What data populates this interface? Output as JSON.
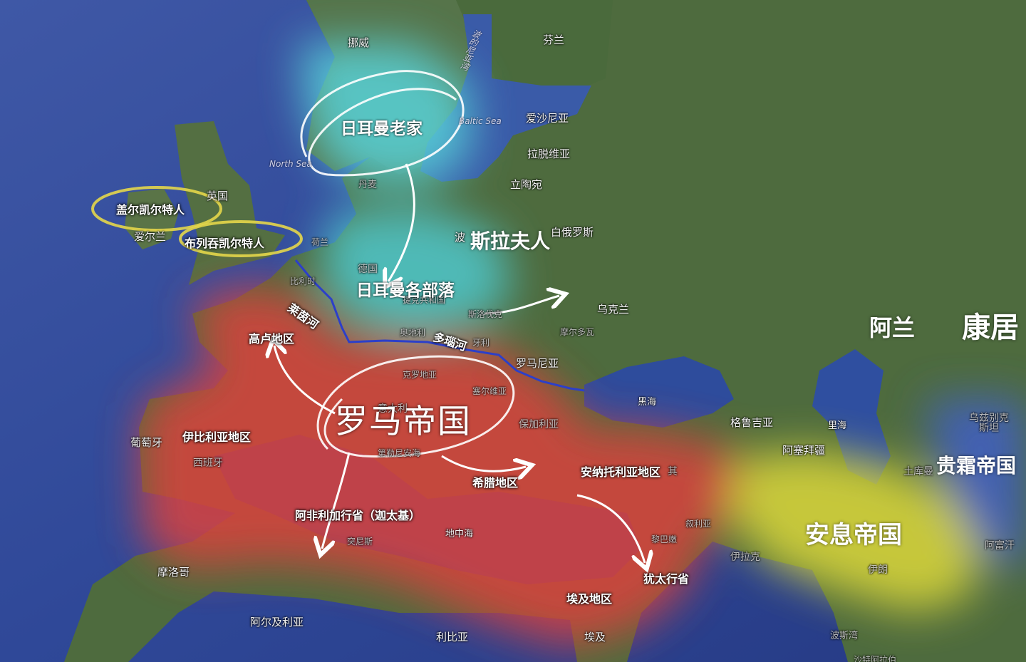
{
  "map": {
    "colors": {
      "roman_empire": "#d9433c",
      "parthia": "#dcd83a",
      "kushan": "#3f5fc8",
      "germanic_origin": "#59d2d8",
      "germanic_tribes": "#4fc8cc",
      "celtic_circle": "#e4d64a",
      "river_border": "#2c3fc9",
      "arrows": "#ffffff"
    },
    "empires": {
      "roman": "罗马帝国",
      "parthian": "安息帝国",
      "kushan": "贵霜帝国",
      "kangju": "康居",
      "alans": "阿兰"
    },
    "peoples": {
      "german_homeland": "日耳曼老家",
      "german_tribes": "日耳曼各部落",
      "slavs": "斯拉夫人",
      "gaelic_celts": "盖尔凯尔特人",
      "brittonic_celts": "布列吞凯尔特人"
    },
    "regions": {
      "gaul": "高卢地区",
      "iberia": "伊比利亚地区",
      "greece": "希腊地区",
      "anatolia": "安纳托利亚地区",
      "africa": "阿非利加行省（迦太基）",
      "egypt": "埃及地区",
      "judea": "犹太行省",
      "rhine": "莱茵河",
      "danube": "多瑙河"
    },
    "seas": {
      "baltic_vertical": "波的尼亚湾",
      "baltic": "Baltic Sea",
      "north": "North Sea",
      "black": "黑海",
      "caspian": "里海",
      "mediterranean": "地中海",
      "persian_gulf": "波斯湾"
    },
    "countries": {
      "norway": "挪威",
      "finland": "芬兰",
      "estonia": "爱沙尼亚",
      "latvia": "拉脱维亚",
      "lithuania": "立陶宛",
      "denmark": "丹麦",
      "uk": "英国",
      "ireland": "爱尔兰",
      "netherlands": "荷兰",
      "belgium": "比利时",
      "germany": "德国",
      "poland": "波",
      "belarus": "白俄罗斯",
      "ukraine": "乌克兰",
      "moldova": "摩尔多瓦",
      "romania": "罗马尼亚",
      "czech": "捷克共和国",
      "slovakia": "斯洛伐克",
      "austria": "奥地利",
      "hungary": "牙利",
      "croatia": "克罗地亚",
      "serbia": "塞尔维亚",
      "bulgaria": "保加利亚",
      "italy": "意大利",
      "portugal": "葡萄牙",
      "spain": "西班牙",
      "georgia": "格鲁吉亚",
      "azerbaijan": "阿塞拜疆",
      "uzbekistan": "乌兹别克斯坦",
      "turkmenistan": "土库曼",
      "afghanistan": "阿富汗",
      "iran": "伊朗",
      "iraq": "伊拉克",
      "syria": "叙利亚",
      "lebanon": "黎巴嫩",
      "tunisia": "突尼斯",
      "morocco": "摩洛哥",
      "algeria": "阿尔及利亚",
      "libya": "利比亚",
      "egypt_country": "埃及",
      "sardinia": "第勒尼安海",
      "saudi": "沙特阿拉伯",
      "turkey_tail": "其"
    }
  }
}
